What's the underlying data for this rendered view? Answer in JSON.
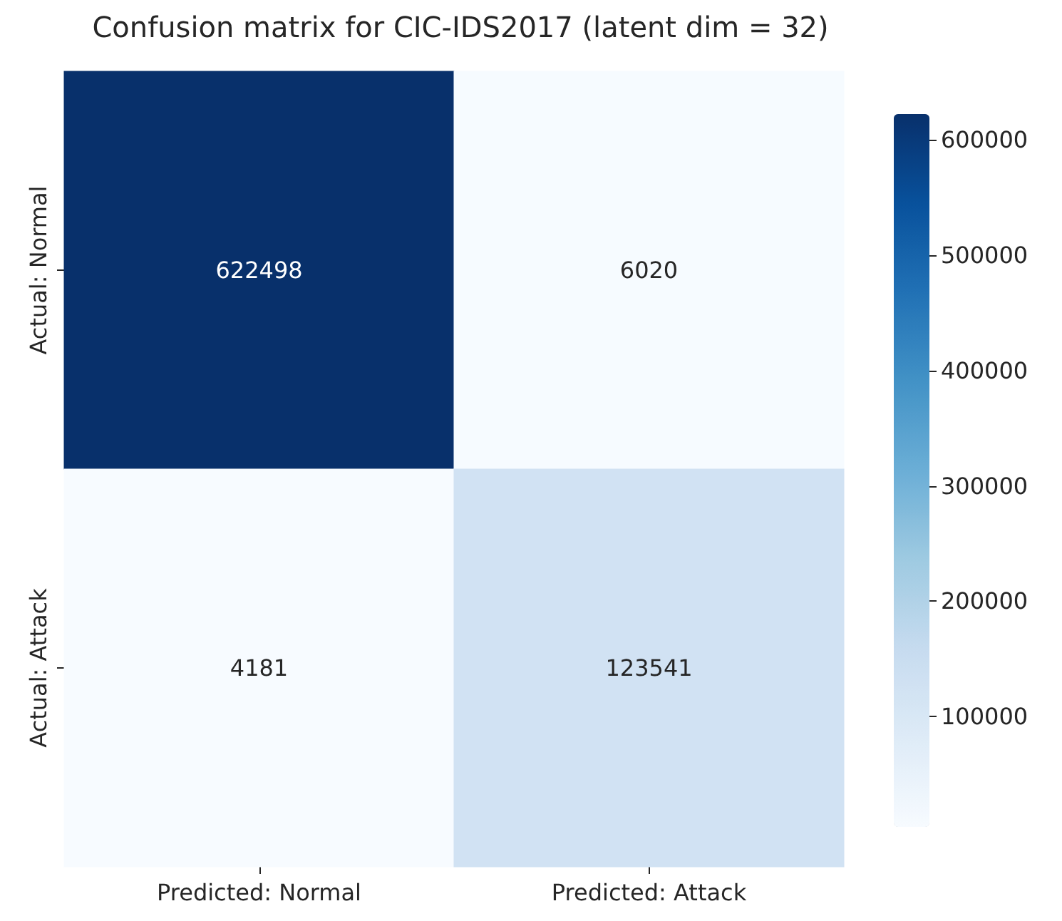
{
  "chart_data": {
    "type": "heatmap",
    "title": "Confusion matrix for CIC-IDS2017 (latent dim = 32)",
    "categories": [
      "Predicted: Normal",
      "Predicted: Attack"
    ],
    "y_categories": [
      "Actual: Normal",
      "Actual: Attack"
    ],
    "cells": [
      [
        622498,
        6020
      ],
      [
        4181,
        123541
      ]
    ],
    "clim": [
      4181,
      622498
    ],
    "cticks": [
      100000,
      200000,
      300000,
      400000,
      500000,
      600000
    ],
    "data_labels": true
  }
}
